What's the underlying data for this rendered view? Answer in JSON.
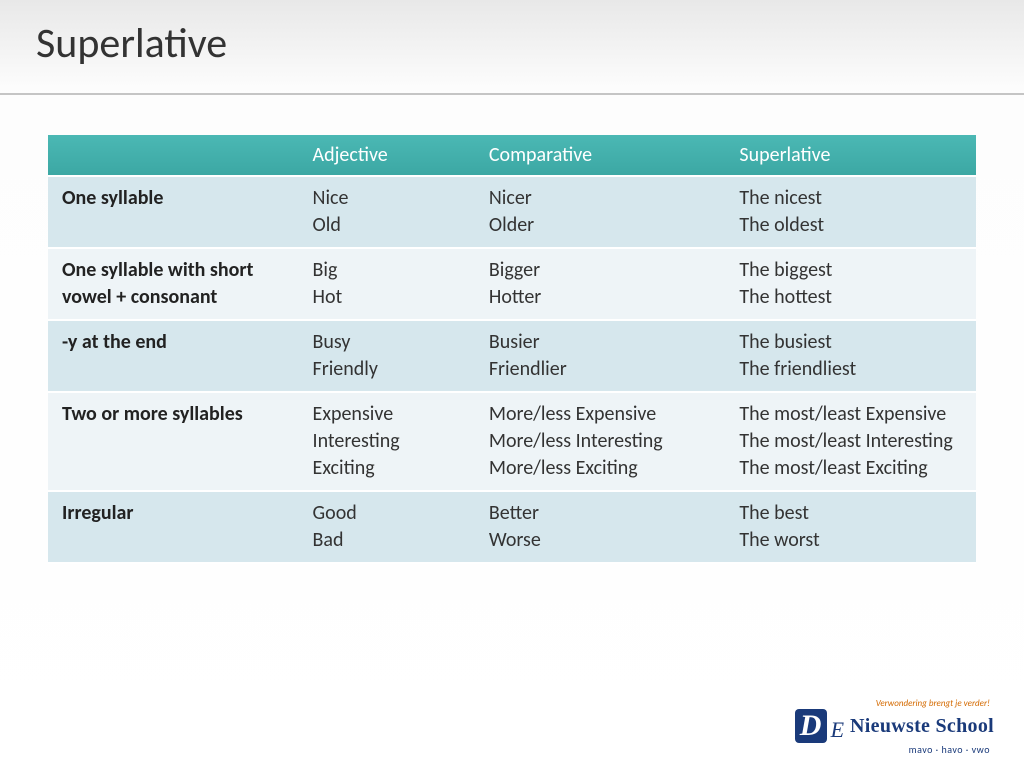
{
  "slide": {
    "title": "Superlative",
    "title_color": "#333333",
    "title_fontsize": 42,
    "background_gradient": [
      "#e8e8e8",
      "#ffffff"
    ]
  },
  "table": {
    "type": "table",
    "header_bg": "#3fb0ac",
    "header_text_color": "#ffffff",
    "row_odd_bg": "#d6e7ed",
    "row_even_bg": "#eef4f7",
    "cell_fontsize": 20,
    "columns": [
      "",
      "Adjective",
      "Comparative",
      "Superlative"
    ],
    "rows": [
      {
        "head": "One syllable",
        "adjective": "Nice\nOld",
        "comparative": "Nicer\nOlder",
        "superlative": "The nicest\nThe oldest"
      },
      {
        "head": "One syllable with short vowel + consonant",
        "adjective": "Big\nHot",
        "comparative": "Bigger\nHotter",
        "superlative": "The biggest\nThe hottest"
      },
      {
        "head": "-y at the end",
        "adjective": "Busy\nFriendly",
        "comparative": "Busier\nFriendlier",
        "superlative": "The busiest\nThe friendliest"
      },
      {
        "head": "Two or more syllables",
        "adjective": "Expensive\nInteresting\nExciting",
        "comparative": "More/less Expensive\nMore/less Interesting\nMore/less Exciting",
        "superlative": "The most/least Expensive\nThe most/least Interesting\nThe most/least Exciting"
      },
      {
        "head": "Irregular",
        "adjective": "Good\nBad",
        "comparative": "Better\nWorse",
        "superlative": "The best\nThe worst"
      }
    ]
  },
  "logo": {
    "tagline": "Verwondering brengt je verder!",
    "name": "Nieuwste School",
    "prefix_D": "D",
    "prefix_e": "E",
    "levels": "mavo · havo · vwo",
    "brand_color": "#1a3a7a",
    "tagline_color": "#d46a00"
  }
}
